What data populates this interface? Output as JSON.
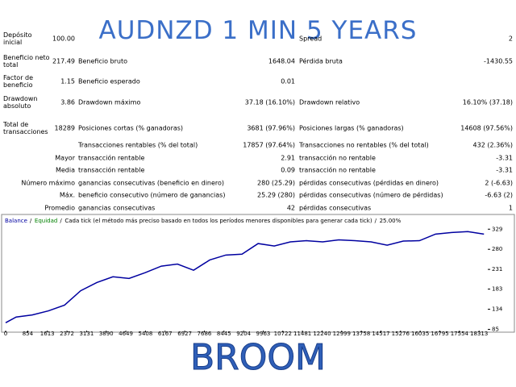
{
  "title": "AUDNZD 1 MIN 5 YEARS",
  "footer": "BROOM",
  "summary": {
    "rows": [
      [
        "Depósito inicial",
        "100.00",
        null,
        null,
        "Spread",
        "2"
      ],
      [
        "Beneficio neto total",
        "217.49",
        "Beneficio bruto",
        "1648.04",
        "Pérdida bruta",
        "-1430.55"
      ],
      [
        "Factor de beneficio",
        "1.15",
        "Beneficio esperado",
        "0.01",
        null,
        null
      ],
      [
        "Drawdown absoluto",
        "3.86",
        "Drawdown máximo",
        "37.18 (16.10%)",
        "Drawdown relativo",
        "16.10% (37.18)"
      ],
      [
        "Total de transacciones",
        "18289",
        "Posiciones cortas (% ganadoras)",
        "3681 (97.96%)",
        "Posiciones largas (% ganadoras)",
        "14608 (97.56%)"
      ],
      [
        null,
        null,
        "Transacciones rentables (% del total)",
        "17857 (97.64%)",
        "Transacciones no rentables (% del total)",
        "432 (2.36%)"
      ]
    ]
  },
  "details": {
    "rows": [
      [
        "Mayor",
        "transacción rentable",
        "2.91",
        "transacción no rentable",
        "-3.31"
      ],
      [
        "Media",
        "transacción rentable",
        "0.09",
        "transacción no rentable",
        "-3.31"
      ],
      [
        "Número máximo",
        "ganancias consecutivas (beneficio en dinero)",
        "280 (25.29)",
        "pérdidas consecutivas (pérdidas en dinero)",
        "2 (-6.63)"
      ],
      [
        "Máx.",
        "beneficio consecutivo (número de ganancias)",
        "25.29 (280)",
        "pérdidas consecutivas (número de pérdidas)",
        "-6.63 (2)"
      ],
      [
        "Promedio",
        "ganancias consecutivas",
        "42",
        "pérdidas consecutivas",
        "1"
      ]
    ]
  },
  "chart_data": {
    "type": "line",
    "header_items": [
      "Equidad",
      "Cada tick (el método más preciso basado en todos los períodos menores disponibles para generar cada tick)",
      "25.00%"
    ],
    "x": [
      0,
      406,
      1030,
      1654,
      2278,
      2902,
      3526,
      4150,
      4774,
      5398,
      6022,
      6646,
      7270,
      7894,
      8518,
      9142,
      9766,
      10390,
      11014,
      11638,
      12262,
      12886,
      13510,
      14134,
      14758,
      15382,
      16006,
      16630,
      17254,
      17878,
      18502
    ],
    "series": [
      {
        "name": "Balance",
        "color": "#0000a0",
        "values": [
          101,
          115,
          120,
          130,
          144,
          179,
          199,
          213,
          209,
          223,
          239,
          244,
          229,
          254,
          266,
          268,
          294,
          288,
          298,
          301,
          298,
          303,
          301,
          298,
          290,
          300,
          301,
          317,
          321,
          323,
          317
        ]
      }
    ],
    "legend_colors": [
      "#008000"
    ],
    "xlim": [
      0,
      18650
    ],
    "ylim": [
      82,
      357
    ],
    "xticks": [
      0,
      854,
      1613,
      2372,
      3131,
      3890,
      4649,
      5408,
      6167,
      6927,
      7686,
      8445,
      9204,
      9963,
      10722,
      11481,
      12240,
      12999,
      13758,
      14517,
      15276,
      16035,
      16795,
      17554,
      18313
    ],
    "yticks": [
      85,
      134,
      183,
      231,
      280,
      329
    ]
  }
}
